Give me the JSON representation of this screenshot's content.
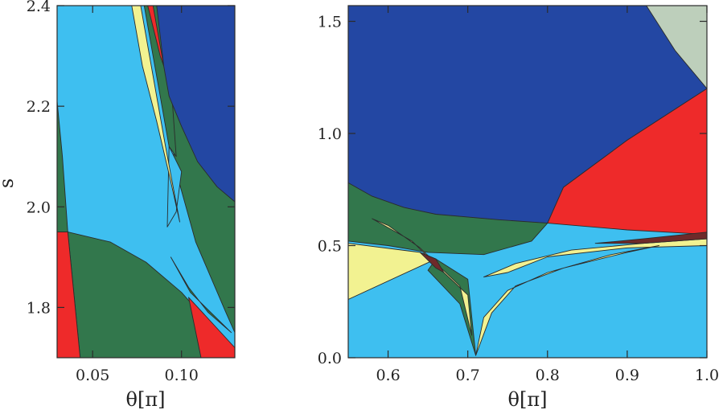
{
  "colors": {
    "dark_blue": "#2347a3",
    "light_blue": "#3ebff0",
    "green": "#32774c",
    "red": "#ee2a2a",
    "yellow": "#f2f291",
    "maroon": "#6e2a2a",
    "gray_green": "#bdcfbb"
  },
  "chart_data": [
    {
      "type": "area",
      "xlabel": "θ[π]",
      "ylabel": "s",
      "xlim": [
        0.03,
        0.13
      ],
      "ylim": [
        1.7,
        2.4
      ],
      "x_ticks": [
        0.05,
        0.1
      ],
      "x_tick_labels": [
        "0.05",
        "0.10"
      ],
      "y_ticks": [
        1.8,
        2.0,
        2.2,
        2.4
      ],
      "y_tick_labels": [
        "1.8",
        "2.0",
        "2.2",
        "2.4"
      ],
      "regions": [
        {
          "color": "light_blue",
          "points": [
            [
              0.03,
              2.4
            ],
            [
              0.1,
              2.4
            ],
            [
              0.13,
              2.4
            ],
            [
              0.13,
              1.7
            ],
            [
              0.03,
              1.7
            ]
          ]
        },
        {
          "color": "green",
          "points": [
            [
              0.03,
              2.21
            ],
            [
              0.033,
              2.1
            ],
            [
              0.036,
              1.95
            ],
            [
              0.03,
              1.95
            ]
          ]
        },
        {
          "color": "green",
          "points": [
            [
              0.036,
              1.95
            ],
            [
              0.06,
              1.93
            ],
            [
              0.08,
              1.89
            ],
            [
              0.1,
              1.83
            ],
            [
              0.12,
              1.75
            ],
            [
              0.128,
              1.7
            ],
            [
              0.043,
              1.7
            ]
          ]
        },
        {
          "color": "red",
          "points": [
            [
              0.03,
              1.95
            ],
            [
              0.036,
              1.95
            ],
            [
              0.043,
              1.7
            ],
            [
              0.03,
              1.7
            ]
          ]
        },
        {
          "color": "red",
          "points": [
            [
              0.104,
              1.82
            ],
            [
              0.13,
              1.72
            ],
            [
              0.13,
              1.7
            ],
            [
              0.111,
              1.7
            ]
          ]
        },
        {
          "color": "green",
          "points": [
            [
              0.09,
              2.25
            ],
            [
              0.1,
              2.18
            ],
            [
              0.112,
              2.1
            ],
            [
              0.122,
              2.04
            ],
            [
              0.13,
              2.01
            ],
            [
              0.13,
              1.75
            ],
            [
              0.125,
              1.79
            ],
            [
              0.108,
              1.93
            ],
            [
              0.097,
              2.07
            ]
          ]
        },
        {
          "color": "light_blue",
          "points": [
            [
              0.093,
              2.12
            ],
            [
              0.1,
              2.07
            ],
            [
              0.097,
              1.99
            ],
            [
              0.092,
              1.96
            ]
          ]
        },
        {
          "color": "green",
          "points": [
            [
              0.094,
              1.9
            ],
            [
              0.104,
              1.84
            ],
            [
              0.115,
              1.79
            ],
            [
              0.128,
              1.75
            ],
            [
              0.105,
              1.83
            ]
          ]
        },
        {
          "color": "yellow",
          "points": [
            [
              0.072,
              2.4
            ],
            [
              0.077,
              2.4
            ],
            [
              0.082,
              2.3
            ],
            [
              0.091,
              2.12
            ],
            [
              0.099,
              1.97
            ],
            [
              0.094,
              2.05
            ],
            [
              0.086,
              2.17
            ],
            [
              0.078,
              2.28
            ]
          ]
        },
        {
          "color": "green",
          "points": [
            [
              0.079,
              2.4
            ],
            [
              0.086,
              2.4
            ],
            [
              0.092,
              2.27
            ],
            [
              0.095,
              2.2
            ],
            [
              0.097,
              2.1
            ],
            [
              0.093,
              2.12
            ],
            [
              0.088,
              2.22
            ],
            [
              0.084,
              2.3
            ]
          ]
        },
        {
          "color": "red",
          "points": [
            [
              0.081,
              2.4
            ],
            [
              0.084,
              2.4
            ],
            [
              0.09,
              2.28
            ],
            [
              0.088,
              2.3
            ]
          ]
        },
        {
          "color": "dark_blue",
          "points": [
            [
              0.086,
              2.4
            ],
            [
              0.13,
              2.4
            ],
            [
              0.13,
              2.01
            ],
            [
              0.12,
              2.04
            ],
            [
              0.109,
              2.09
            ],
            [
              0.1,
              2.16
            ],
            [
              0.093,
              2.22
            ],
            [
              0.09,
              2.28
            ]
          ]
        }
      ]
    },
    {
      "type": "area",
      "xlabel": "θ[π]",
      "ylabel": "",
      "xlim": [
        0.55,
        1.0
      ],
      "ylim": [
        0.0,
        1.57
      ],
      "x_ticks": [
        0.6,
        0.7,
        0.8,
        0.9,
        1.0
      ],
      "x_tick_labels": [
        "0.6",
        "0.7",
        "0.8",
        "0.9",
        "1.0"
      ],
      "y_ticks": [
        0.0,
        0.5,
        1.0,
        1.5
      ],
      "y_tick_labels": [
        "0.0",
        "0.5",
        "1.0",
        "1.5"
      ],
      "regions": [
        {
          "color": "light_blue",
          "points": [
            [
              0.55,
              1.57
            ],
            [
              1.0,
              1.57
            ],
            [
              1.0,
              0.0
            ],
            [
              0.55,
              0.0
            ]
          ]
        },
        {
          "color": "dark_blue",
          "points": [
            [
              0.55,
              1.57
            ],
            [
              0.924,
              1.57
            ],
            [
              0.95,
              1.45
            ],
            [
              1.0,
              1.2
            ],
            [
              0.9,
              0.97
            ],
            [
              0.82,
              0.76
            ],
            [
              0.8,
              0.6
            ],
            [
              0.7,
              0.62
            ],
            [
              0.6,
              0.64
            ],
            [
              0.55,
              0.64
            ]
          ]
        },
        {
          "color": "gray_green",
          "points": [
            [
              0.924,
              1.57
            ],
            [
              1.0,
              1.57
            ],
            [
              1.0,
              1.2
            ],
            [
              0.96,
              1.37
            ]
          ]
        },
        {
          "color": "red",
          "points": [
            [
              0.8,
              0.6
            ],
            [
              0.82,
              0.76
            ],
            [
              0.9,
              0.97
            ],
            [
              1.0,
              1.2
            ],
            [
              1.0,
              0.55
            ],
            [
              0.9,
              0.57
            ]
          ]
        },
        {
          "color": "red",
          "points": [
            [
              0.55,
              0.7
            ],
            [
              0.562,
              0.65
            ],
            [
              0.55,
              0.64
            ]
          ]
        },
        {
          "color": "green",
          "points": [
            [
              0.55,
              0.78
            ],
            [
              0.58,
              0.72
            ],
            [
              0.62,
              0.67
            ],
            [
              0.66,
              0.64
            ],
            [
              0.74,
              0.615
            ],
            [
              0.8,
              0.6
            ],
            [
              0.78,
              0.52
            ],
            [
              0.72,
              0.46
            ],
            [
              0.65,
              0.47
            ],
            [
              0.6,
              0.5
            ],
            [
              0.55,
              0.52
            ]
          ]
        },
        {
          "color": "yellow",
          "points": [
            [
              0.55,
              0.51
            ],
            [
              0.64,
              0.47
            ],
            [
              0.66,
              0.44
            ],
            [
              0.55,
              0.26
            ]
          ]
        },
        {
          "color": "green",
          "points": [
            [
              0.66,
              0.44
            ],
            [
              0.7,
              0.35
            ],
            [
              0.71,
              0.01
            ],
            [
              0.69,
              0.24
            ],
            [
              0.65,
              0.39
            ]
          ]
        },
        {
          "color": "yellow",
          "points": [
            [
              0.58,
              0.62
            ],
            [
              0.63,
              0.52
            ],
            [
              0.67,
              0.38
            ],
            [
              0.7,
              0.28
            ],
            [
              0.705,
              0.1
            ],
            [
              0.69,
              0.32
            ],
            [
              0.64,
              0.49
            ],
            [
              0.6,
              0.59
            ]
          ]
        },
        {
          "color": "maroon",
          "points": [
            [
              0.64,
              0.47
            ],
            [
              0.66,
              0.44
            ],
            [
              0.67,
              0.38
            ],
            [
              0.66,
              0.4
            ]
          ]
        },
        {
          "color": "yellow",
          "points": [
            [
              0.72,
              0.36
            ],
            [
              0.76,
              0.42
            ],
            [
              0.83,
              0.48
            ],
            [
              0.92,
              0.51
            ],
            [
              1.0,
              0.53
            ],
            [
              1.0,
              0.5
            ],
            [
              0.9,
              0.49
            ],
            [
              0.8,
              0.45
            ],
            [
              0.75,
              0.38
            ]
          ]
        },
        {
          "color": "maroon",
          "points": [
            [
              0.86,
              0.51
            ],
            [
              0.92,
              0.53
            ],
            [
              1.0,
              0.56
            ],
            [
              1.0,
              0.53
            ],
            [
              0.92,
              0.51
            ]
          ]
        },
        {
          "color": "yellow",
          "points": [
            [
              0.71,
              0.01
            ],
            [
              0.72,
              0.18
            ],
            [
              0.75,
              0.3
            ],
            [
              0.8,
              0.38
            ],
            [
              0.88,
              0.46
            ],
            [
              0.94,
              0.5
            ],
            [
              0.9,
              0.47
            ],
            [
              0.82,
              0.4
            ],
            [
              0.76,
              0.32
            ],
            [
              0.73,
              0.2
            ]
          ]
        }
      ]
    }
  ]
}
